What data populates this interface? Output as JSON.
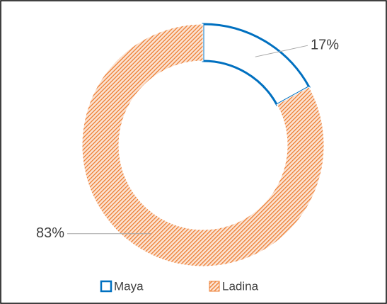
{
  "chart_data": {
    "type": "donut",
    "categories": [
      "Maya",
      "Ladina"
    ],
    "values": [
      17,
      83
    ],
    "value_labels": [
      "17%",
      "83%"
    ],
    "colors": [
      "#0070c0",
      "#ed7d31"
    ],
    "legend": "bottom"
  }
}
